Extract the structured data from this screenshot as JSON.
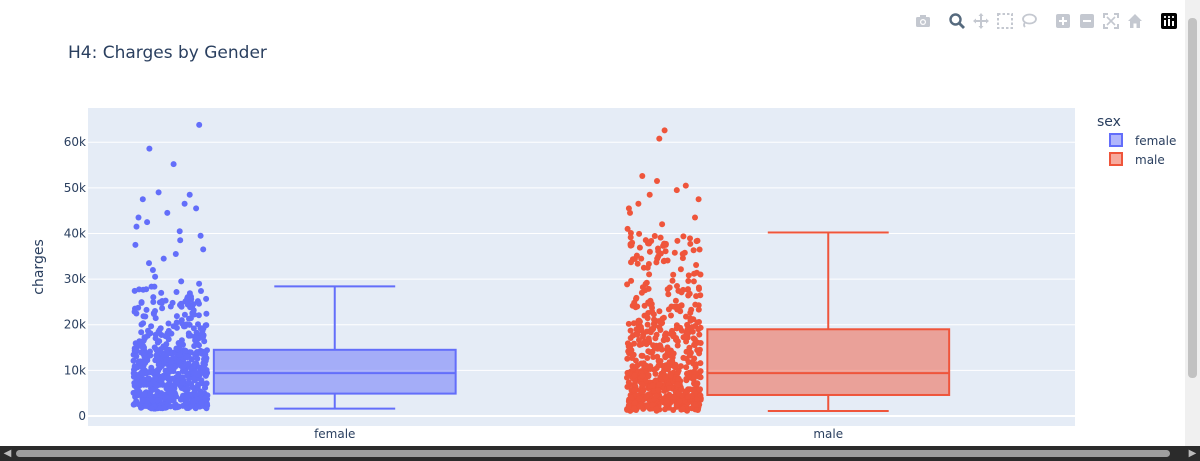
{
  "toolbar": {
    "buttons": [
      {
        "name": "camera-icon",
        "label": "Download plot as a png"
      },
      {
        "name": "zoom-icon",
        "label": "Zoom"
      },
      {
        "name": "pan-icon",
        "label": "Pan"
      },
      {
        "name": "box-select-icon",
        "label": "Box Select"
      },
      {
        "name": "lasso-select-icon",
        "label": "Lasso Select"
      },
      {
        "name": "zoom-in-icon",
        "label": "Zoom in"
      },
      {
        "name": "zoom-out-icon",
        "label": "Zoom out"
      },
      {
        "name": "autoscale-icon",
        "label": "Autoscale"
      },
      {
        "name": "home-icon",
        "label": "Reset axes"
      },
      {
        "name": "plotly-logo-icon",
        "label": "Produced with Plotly"
      }
    ]
  },
  "chart_data": {
    "type": "box",
    "title": "H4: Charges by Gender",
    "xlabel": "",
    "ylabel": "charges",
    "ylim": [
      -2200,
      67500
    ],
    "yticks": [
      0,
      10000,
      20000,
      30000,
      40000,
      50000,
      60000
    ],
    "ytick_labels": [
      "0",
      "10k",
      "20k",
      "30k",
      "40k",
      "50k",
      "60k"
    ],
    "categories": [
      "female",
      "male"
    ],
    "legend": {
      "title": "sex",
      "position": "top-right"
    },
    "grid": true,
    "series": [
      {
        "name": "female",
        "color": "#636efa",
        "box": {
          "lowerfence": 1600,
          "q1": 4900,
          "median": 9400,
          "q3": 14500,
          "upperfence": 28400
        },
        "outliers": [
          29000,
          29500,
          30500,
          32000,
          33500,
          34500,
          35500,
          36500,
          37500,
          38500,
          39500,
          40500,
          41500,
          42500,
          43500,
          44500,
          45500,
          46500,
          47500,
          48500,
          49000,
          55200,
          58600,
          63800
        ],
        "points": {
          "count": 662,
          "min": 1600,
          "max": 63800
        }
      },
      {
        "name": "male",
        "color": "#ef553b",
        "box": {
          "lowerfence": 1100,
          "q1": 4600,
          "median": 9400,
          "q3": 19000,
          "upperfence": 40200
        },
        "outliers": [
          41000,
          42000,
          43500,
          44500,
          45500,
          46500,
          47500,
          48500,
          49500,
          50500,
          51500,
          52600,
          60800,
          62600
        ],
        "points": {
          "count": 676,
          "min": 1100,
          "max": 62600
        }
      }
    ]
  }
}
